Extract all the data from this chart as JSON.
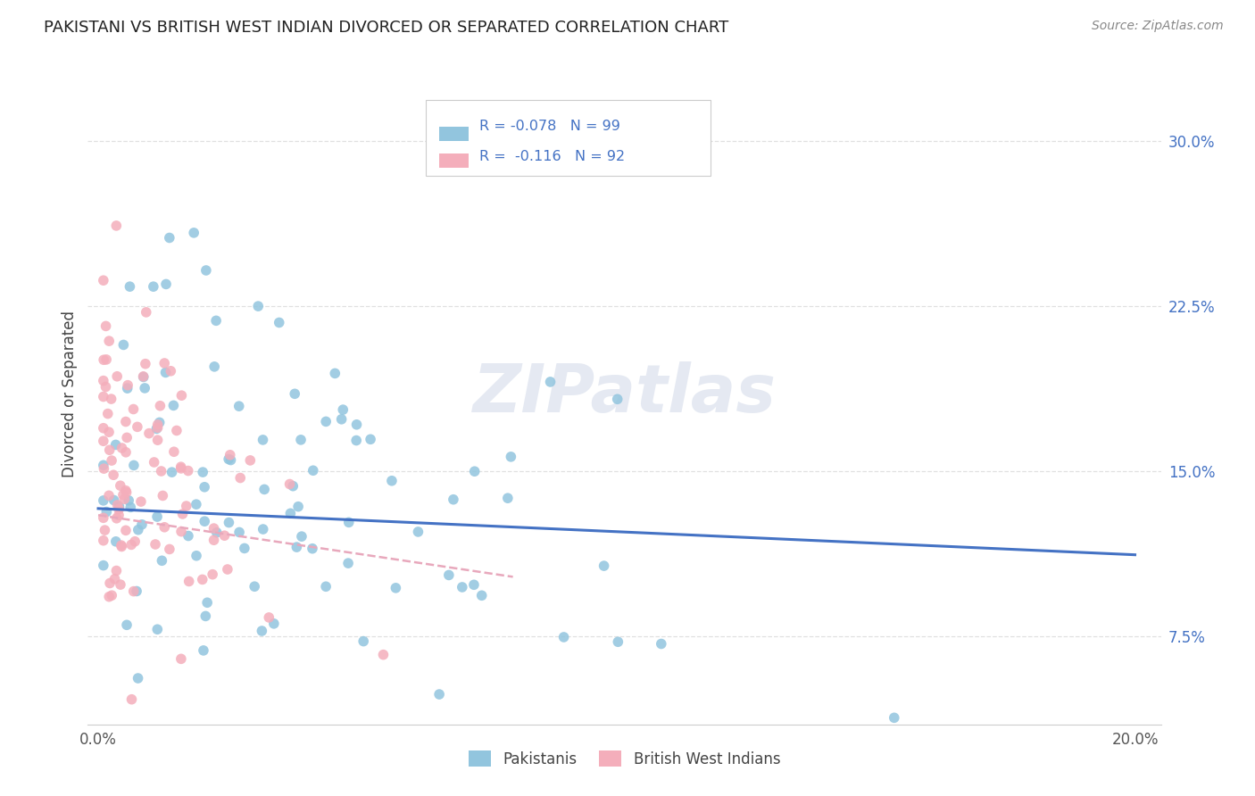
{
  "title": "PAKISTANI VS BRITISH WEST INDIAN DIVORCED OR SEPARATED CORRELATION CHART",
  "source": "Source: ZipAtlas.com",
  "watermark": "ZIPatlas",
  "ylabel": "Divorced or Separated",
  "ytick_labels": [
    "7.5%",
    "15.0%",
    "22.5%",
    "30.0%"
  ],
  "ytick_values": [
    0.075,
    0.15,
    0.225,
    0.3
  ],
  "xtick_labels": [
    "0.0%",
    "",
    "",
    "",
    "20.0%"
  ],
  "xtick_values": [
    0.0,
    0.05,
    0.1,
    0.15,
    0.2
  ],
  "xlim": [
    -0.002,
    0.205
  ],
  "ylim": [
    0.035,
    0.335
  ],
  "blue_color": "#92C5DE",
  "pink_color": "#F4AEBB",
  "blue_line_color": "#4472C4",
  "pink_line_color": "#F4AEBB",
  "legend_text_color": "#4472C4",
  "title_color": "#222222",
  "axis_label_color": "#555555",
  "grid_color": "#E0E0E0",
  "R_blue": -0.078,
  "N_blue": 99,
  "R_pink": -0.116,
  "N_pink": 92,
  "blue_trend": [
    0.0,
    0.2,
    0.133,
    0.112
  ],
  "pink_trend": [
    0.0,
    0.08,
    0.13,
    0.102
  ]
}
